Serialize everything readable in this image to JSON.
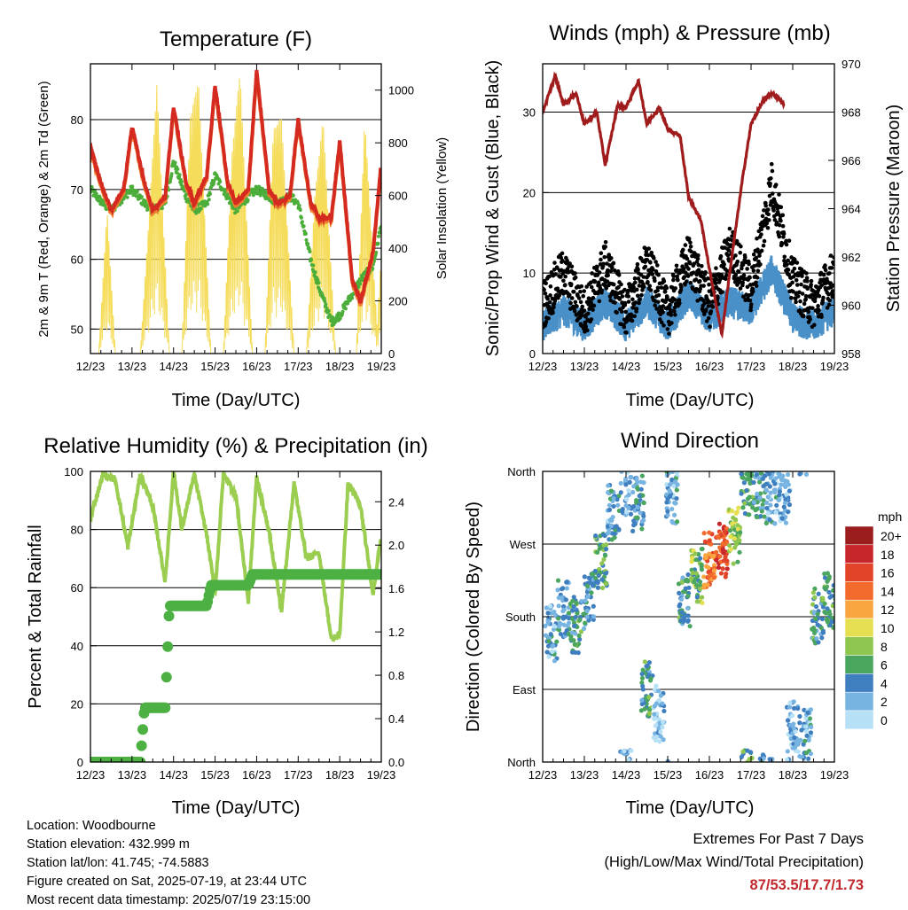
{
  "charts": {
    "temperature": {
      "title": "Temperature (F)",
      "ylabel_left": "2m & 9m T (Red, Orange) & 2m Td (Green)",
      "ylabel_right": "Solar Insolation (Yellow)",
      "xlabel": "Time (Day/UTC)"
    },
    "winds": {
      "title": "Winds (mph) & Pressure (mb)",
      "ylabel_left": "Sonic/Prop Wind & Gust (Blue, Black)",
      "ylabel_right": "Station Pressure (Maroon)",
      "xlabel": "Time (Day/UTC)"
    },
    "humidity": {
      "title": "Relative Humidity (%) & Precipitation (in)",
      "ylabel_left": "Percent & Total Rainfall",
      "xlabel": "Time (Day/UTC)"
    },
    "direction": {
      "title": "Wind Direction",
      "ylabel_left": "Direction (Colored By Speed)",
      "xlabel": "Time (Day/UTC)",
      "legend_title": "mph"
    }
  },
  "info": {
    "location": "Location: Woodbourne",
    "elevation": "Station elevation: 432.999 m",
    "latlon": "Station lat/lon: 41.745; -74.5883",
    "created": "Figure created on Sat, 2025-07-19, at 23:44 UTC",
    "recent": "Most recent data timestamp: 2025/07/19 23:15:00"
  },
  "extremes": {
    "heading": "Extremes For Past 7 Days",
    "subheading": "(High/Low/Max Wind/Total Precipitation)",
    "values": "87/53.5/17.7/1.73"
  },
  "colors": {
    "temp": "#d42a20",
    "temp9m": "#f08030",
    "dewpoint": "#4cae3a",
    "solar": "#f5dc5a",
    "gust": "#000000",
    "wind": "#4a90c8",
    "pressure": "#a01c1c",
    "rh": "#9acd50",
    "precip": "#4cb043"
  },
  "chart_data": [
    {
      "type": "line",
      "id": "temperature",
      "x_ticks": [
        "12/23",
        "13/23",
        "14/23",
        "15/23",
        "16/23",
        "17/23",
        "18/23",
        "19/23"
      ],
      "y_ticks_left": [
        "50",
        "60",
        "70",
        "80"
      ],
      "y_ticks_right": [
        "0",
        "200",
        "400",
        "600",
        "800",
        "1000"
      ],
      "ylim_left": [
        46.5,
        88
      ],
      "ylim_right": [
        0,
        1100
      ],
      "grid": true,
      "series": [
        {
          "key": "temp",
          "x": [
            12.0,
            12.3,
            12.5,
            12.8,
            13.0,
            13.3,
            13.5,
            13.8,
            14.0,
            14.3,
            14.5,
            14.8,
            15.0,
            15.3,
            15.5,
            15.8,
            16.0,
            16.3,
            16.5,
            16.8,
            17.0,
            17.3,
            17.5,
            17.8,
            18.0,
            18.3,
            18.5,
            18.8,
            19.0
          ],
          "y": [
            76,
            70,
            67,
            70,
            79,
            71,
            67,
            69,
            82,
            71,
            68,
            72,
            85,
            71,
            68,
            70,
            87,
            70,
            68,
            69,
            80,
            68,
            66,
            66,
            77,
            57,
            54,
            61,
            74
          ]
        },
        {
          "key": "dewpoint",
          "x": [
            12.0,
            12.3,
            12.5,
            12.8,
            13.0,
            13.3,
            13.5,
            13.8,
            14.0,
            14.3,
            14.5,
            14.8,
            15.0,
            15.3,
            15.5,
            15.8,
            16.0,
            16.3,
            16.5,
            16.8,
            17.0,
            17.3,
            17.5,
            17.8,
            18.0,
            18.3,
            18.5,
            18.8,
            19.0
          ],
          "y": [
            70,
            68,
            67,
            69,
            70,
            68,
            67,
            68,
            74,
            69,
            67,
            68,
            72,
            69,
            67,
            69,
            70,
            69,
            68,
            69,
            68,
            60,
            56,
            51,
            52,
            55,
            57,
            59,
            65
          ]
        },
        {
          "key": "solar",
          "x": [
            12.0,
            12.2,
            12.4,
            12.6,
            12.9,
            13.2,
            13.4,
            13.6,
            13.9,
            14.2,
            14.4,
            14.6,
            14.9,
            15.2,
            15.4,
            15.6,
            15.9,
            16.2,
            16.4,
            16.6,
            16.9,
            17.2,
            17.4,
            17.6,
            17.9,
            18.2,
            18.4,
            18.6,
            18.9,
            19.0
          ],
          "y": [
            0,
            0,
            550,
            0,
            0,
            0,
            500,
            1030,
            0,
            0,
            900,
            1040,
            0,
            0,
            750,
            1080,
            0,
            0,
            850,
            900,
            0,
            0,
            600,
            900,
            0,
            0,
            0,
            900,
            100,
            400
          ]
        }
      ]
    },
    {
      "type": "line",
      "id": "winds",
      "x_ticks": [
        "12/23",
        "13/23",
        "14/23",
        "15/23",
        "16/23",
        "17/23",
        "18/23",
        "19/23"
      ],
      "y_ticks_left": [
        "0",
        "10",
        "20",
        "30"
      ],
      "y_ticks_right": [
        "958",
        "960",
        "962",
        "964",
        "966",
        "968",
        "970"
      ],
      "ylim_left": [
        0,
        36
      ],
      "ylim_right": [
        958,
        970
      ],
      "grid": true,
      "series": [
        {
          "key": "pressure",
          "x": [
            12.0,
            12.3,
            12.5,
            12.8,
            13.0,
            13.3,
            13.5,
            13.8,
            14.0,
            14.3,
            14.5,
            14.8,
            15.0,
            15.3,
            15.5,
            15.8,
            16.0,
            16.3,
            16.5,
            16.8,
            17.0,
            17.3,
            17.5,
            17.8
          ],
          "y": [
            968.0,
            969.5,
            968.3,
            968.8,
            967.5,
            968.0,
            965.8,
            968.3,
            968.2,
            969.3,
            967.5,
            968.2,
            967.3,
            967.0,
            964.5,
            963.5,
            961.5,
            958.8,
            961.5,
            965.3,
            967.5,
            968.5,
            968.8,
            968.3
          ]
        },
        {
          "key": "wind",
          "x": [
            12.0,
            12.5,
            13.0,
            13.5,
            14.0,
            14.5,
            15.0,
            15.5,
            16.0,
            16.5,
            17.0,
            17.5,
            18.0,
            18.5,
            19.0
          ],
          "y": [
            3,
            5,
            3,
            6,
            3,
            6,
            3,
            7,
            4,
            6,
            5,
            10,
            4,
            3,
            5
          ]
        },
        {
          "key": "gust",
          "x": [
            12.0,
            12.5,
            13.0,
            13.5,
            14.0,
            14.5,
            15.0,
            15.5,
            16.0,
            16.5,
            17.0,
            17.5,
            18.0,
            18.5,
            19.0
          ],
          "y": [
            6,
            10,
            5,
            11,
            5,
            11,
            5,
            12,
            6,
            13,
            8,
            21,
            9,
            6,
            10
          ]
        }
      ]
    },
    {
      "type": "line",
      "id": "humidity",
      "x_ticks": [
        "12/23",
        "13/23",
        "14/23",
        "15/23",
        "16/23",
        "17/23",
        "18/23",
        "19/23"
      ],
      "y_ticks_left": [
        "0",
        "20",
        "40",
        "60",
        "80",
        "100"
      ],
      "y_ticks_right": [
        "0.0",
        "0.4",
        "0.8",
        "1.2",
        "1.6",
        "2.0",
        "2.4"
      ],
      "ylim_left": [
        0,
        100
      ],
      "ylim_right": [
        0,
        2.68
      ],
      "grid": true,
      "series": [
        {
          "key": "rh",
          "x": [
            12.0,
            12.3,
            12.6,
            12.9,
            13.2,
            13.5,
            13.8,
            14.0,
            14.2,
            14.5,
            14.8,
            15.0,
            15.2,
            15.5,
            15.8,
            16.0,
            16.3,
            16.6,
            16.9,
            17.2,
            17.5,
            17.8,
            18.0,
            18.2,
            18.5,
            18.8,
            19.0
          ],
          "y": [
            84,
            99,
            97,
            74,
            99,
            88,
            62,
            100,
            80,
            99,
            78,
            58,
            99,
            92,
            55,
            98,
            79,
            52,
            96,
            70,
            72,
            42,
            44,
            96,
            88,
            58,
            78
          ]
        },
        {
          "key": "precip",
          "x": [
            12.0,
            13.2,
            13.3,
            13.5,
            13.8,
            13.9,
            14.0,
            14.8,
            14.9,
            15.0,
            15.8,
            15.9,
            19.0
          ],
          "y": [
            0,
            0,
            0.5,
            0.5,
            0.5,
            1.44,
            1.44,
            1.44,
            1.63,
            1.63,
            1.63,
            1.73,
            1.73
          ]
        }
      ]
    },
    {
      "type": "scatter",
      "id": "direction",
      "x_ticks": [
        "12/23",
        "13/23",
        "14/23",
        "15/23",
        "16/23",
        "17/23",
        "18/23",
        "19/23"
      ],
      "y_ticks_left": [
        "North",
        "East",
        "South",
        "West",
        "North"
      ],
      "ylim": [
        0,
        360
      ],
      "grid": true,
      "legend": {
        "placement": "right",
        "labels": [
          "20+",
          "18",
          "16",
          "14",
          "12",
          "10",
          "8",
          "6",
          "4",
          "2",
          "0"
        ],
        "colors": [
          "#9b1d1d",
          "#c7262b",
          "#e2442a",
          "#f26b2c",
          "#f9a640",
          "#e7df52",
          "#8fc64f",
          "#4aa55e",
          "#3f7fbf",
          "#78b4e2",
          "#b6e0f6"
        ]
      },
      "series": [
        {
          "name": "",
          "x": [
            12.2,
            12.5,
            12.8,
            13.1,
            13.4,
            13.7,
            14.0,
            14.3,
            14.5,
            14.8,
            15.1,
            15.4,
            15.7,
            16.0,
            16.3,
            16.6,
            16.9,
            17.2,
            17.5,
            17.8,
            18.0,
            18.3,
            18.6,
            18.9
          ],
          "y": [
            160,
            190,
            170,
            200,
            250,
            310,
            340,
            320,
            90,
            60,
            330,
            200,
            230,
            250,
            260,
            280,
            340,
            335,
            330,
            330,
            40,
            30,
            180,
            200
          ],
          "speed": [
            3,
            4,
            5,
            4,
            6,
            3,
            2,
            4,
            5,
            2,
            3,
            5,
            7,
            14,
            16,
            8,
            6,
            4,
            3,
            2,
            2,
            3,
            5,
            6
          ]
        }
      ]
    }
  ]
}
